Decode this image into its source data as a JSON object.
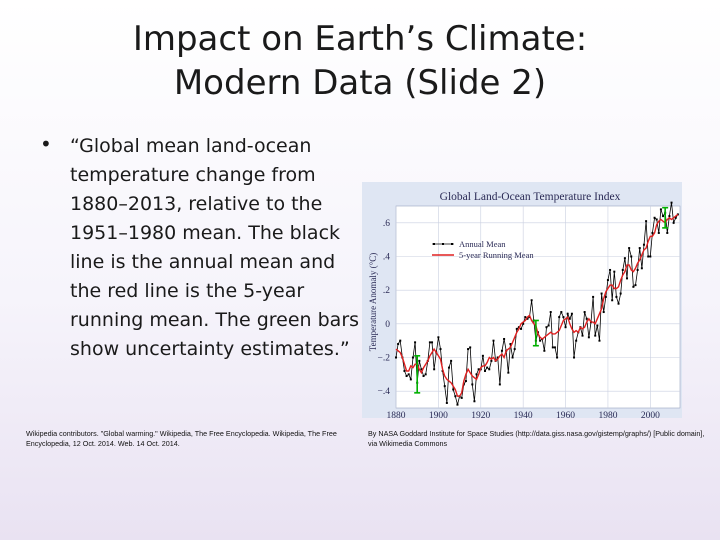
{
  "slide": {
    "title_line1": "Impact on Earth’s Climate:",
    "title_line2": "Modern Data (Slide 2)",
    "bullet_symbol": "•",
    "bullet_text": "“Global mean land-ocean temperature change from 1880–2013, relative to the 1951–1980 mean. The black line is the annual mean and the red line is the 5-year running mean. The green bars show uncertainty estimates.”",
    "citation_left": "Wikipedia contributors. \"Global warming.\" Wikipedia, The Free Encyclopedia. Wikipedia, The Free Encyclopedia, 12 Oct. 2014. Web. 14 Oct. 2014.",
    "citation_right": "By NASA Goddard Institute for Space Studies (http://data.giss.nasa.gov/gistemp/graphs/) [Public domain], via Wikimedia Commons"
  },
  "chart_data": {
    "type": "line",
    "title": "Global Land-Ocean Temperature Index",
    "ylabel": "Temperature Anomaly (°C)",
    "xlabel": "",
    "xlim": [
      1880,
      2014
    ],
    "ylim": [
      -0.5,
      0.7
    ],
    "x_ticks": [
      1880,
      1900,
      1920,
      1940,
      1960,
      1980,
      2000
    ],
    "y_ticks": [
      -0.4,
      -0.2,
      0,
      0.2,
      0.4,
      0.6
    ],
    "y_tick_labels": [
      "−.4",
      "−.2",
      "0",
      ".2",
      ".4",
      ".6"
    ],
    "legend_position": "top-left",
    "grid": true,
    "colors": {
      "annual": "#000000",
      "running": "#e02020",
      "uncertainty": "#00b000",
      "plot_bg": "#ffffff",
      "grid": "#c9cfe0"
    },
    "series": [
      {
        "name": "Annual Mean",
        "x_start": 1880,
        "values": [
          -0.2,
          -0.12,
          -0.1,
          -0.2,
          -0.28,
          -0.31,
          -0.3,
          -0.33,
          -0.2,
          -0.11,
          -0.35,
          -0.22,
          -0.27,
          -0.31,
          -0.3,
          -0.22,
          -0.11,
          -0.11,
          -0.27,
          -0.17,
          -0.08,
          -0.15,
          -0.28,
          -0.37,
          -0.47,
          -0.26,
          -0.22,
          -0.39,
          -0.43,
          -0.48,
          -0.43,
          -0.44,
          -0.36,
          -0.34,
          -0.15,
          -0.14,
          -0.36,
          -0.46,
          -0.3,
          -0.27,
          -0.27,
          -0.19,
          -0.28,
          -0.26,
          -0.27,
          -0.22,
          -0.1,
          -0.22,
          -0.2,
          -0.36,
          -0.16,
          -0.09,
          -0.16,
          -0.29,
          -0.12,
          -0.2,
          -0.15,
          -0.03,
          -0.02,
          -0.03,
          0.0,
          0.04,
          0.03,
          0.04,
          0.14,
          0.02,
          -0.1,
          -0.05,
          -0.1,
          -0.09,
          -0.16,
          -0.02,
          -0.01,
          0.07,
          -0.14,
          -0.14,
          -0.2,
          0.04,
          0.07,
          0.04,
          -0.02,
          0.06,
          0.03,
          0.06,
          -0.2,
          -0.1,
          -0.05,
          -0.02,
          -0.07,
          0.07,
          0.03,
          -0.08,
          0.01,
          0.16,
          -0.07,
          -0.01,
          -0.1,
          0.18,
          0.07,
          0.16,
          0.26,
          0.32,
          0.14,
          0.31,
          0.16,
          0.12,
          0.18,
          0.32,
          0.39,
          0.27,
          0.45,
          0.4,
          0.22,
          0.23,
          0.32,
          0.45,
          0.33,
          0.47,
          0.61,
          0.4,
          0.4,
          0.54,
          0.63,
          0.62,
          0.54,
          0.68,
          0.64,
          0.66,
          0.54,
          0.64,
          0.72,
          0.6,
          0.63,
          0.65
        ]
      },
      {
        "name": "5-year Running Mean",
        "x_start": 1880,
        "values": [
          -0.15,
          -0.16,
          -0.17,
          -0.2,
          -0.24,
          -0.28,
          -0.28,
          -0.25,
          -0.26,
          -0.24,
          -0.24,
          -0.27,
          -0.29,
          -0.26,
          -0.24,
          -0.22,
          -0.19,
          -0.17,
          -0.15,
          -0.17,
          -0.19,
          -0.21,
          -0.27,
          -0.31,
          -0.33,
          -0.34,
          -0.35,
          -0.37,
          -0.39,
          -0.43,
          -0.43,
          -0.41,
          -0.34,
          -0.3,
          -0.27,
          -0.29,
          -0.31,
          -0.32,
          -0.33,
          -0.3,
          -0.26,
          -0.25,
          -0.25,
          -0.23,
          -0.2,
          -0.21,
          -0.2,
          -0.22,
          -0.21,
          -0.19,
          -0.18,
          -0.2,
          -0.16,
          -0.15,
          -0.14,
          -0.11,
          -0.08,
          -0.05,
          -0.03,
          0.0,
          0.01,
          0.02,
          0.04,
          0.05,
          0.02,
          0.0,
          -0.01,
          -0.06,
          -0.08,
          -0.09,
          -0.08,
          -0.07,
          -0.06,
          -0.05,
          -0.06,
          -0.06,
          -0.05,
          -0.04,
          -0.01,
          0.02,
          0.03,
          0.04,
          0.0,
          -0.03,
          -0.05,
          -0.04,
          -0.05,
          -0.02,
          -0.03,
          -0.02,
          0.01,
          0.03,
          0.01,
          0.01,
          0.0,
          0.03,
          0.06,
          0.09,
          0.15,
          0.19,
          0.21,
          0.23,
          0.23,
          0.21,
          0.21,
          0.22,
          0.26,
          0.29,
          0.31,
          0.35,
          0.35,
          0.32,
          0.31,
          0.33,
          0.36,
          0.38,
          0.41,
          0.44,
          0.45,
          0.49,
          0.52,
          0.52,
          0.54,
          0.59,
          0.61,
          0.62,
          0.61,
          0.6,
          0.62,
          0.63,
          0.62,
          0.63,
          0.64,
          0.65
        ]
      }
    ],
    "uncertainty_bars": [
      {
        "x": 1890,
        "low": -0.41,
        "high": -0.19
      },
      {
        "x": 1946,
        "low": -0.13,
        "high": 0.02
      },
      {
        "x": 2007,
        "low": 0.57,
        "high": 0.69
      }
    ]
  }
}
